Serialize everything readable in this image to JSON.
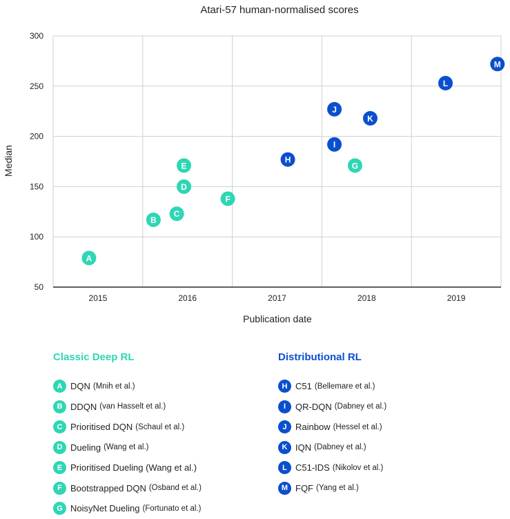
{
  "colors": {
    "classic": "#2ed6b4",
    "distributional": "#0b4fce",
    "grid": "#cfcfcf",
    "axis": "#2a2a2a"
  },
  "chart_data": {
    "type": "scatter",
    "title": "Atari-57 human-normalised scores",
    "xlabel": "Publication date",
    "ylabel": "Median",
    "ylim": [
      50,
      300
    ],
    "yticks": [
      50,
      100,
      150,
      200,
      250,
      300
    ],
    "xlim": [
      2014.5,
      2019.5
    ],
    "xticks": [
      "2015",
      "2016",
      "2017",
      "2018",
      "2019"
    ],
    "series": [
      {
        "name": "Classic Deep RL",
        "color": "#2ed6b4",
        "points": [
          {
            "label": "A",
            "x": 2014.9,
            "y": 79
          },
          {
            "label": "B",
            "x": 2015.62,
            "y": 117
          },
          {
            "label": "C",
            "x": 2015.88,
            "y": 123
          },
          {
            "label": "D",
            "x": 2015.96,
            "y": 150
          },
          {
            "label": "E",
            "x": 2015.96,
            "y": 171
          },
          {
            "label": "F",
            "x": 2016.45,
            "y": 138
          },
          {
            "label": "G",
            "x": 2017.87,
            "y": 171
          }
        ]
      },
      {
        "name": "Distributional RL",
        "color": "#0b4fce",
        "points": [
          {
            "label": "H",
            "x": 2017.12,
            "y": 177
          },
          {
            "label": "I",
            "x": 2017.64,
            "y": 192
          },
          {
            "label": "J",
            "x": 2017.64,
            "y": 227
          },
          {
            "label": "K",
            "x": 2018.04,
            "y": 218
          },
          {
            "label": "L",
            "x": 2018.88,
            "y": 253
          },
          {
            "label": "M",
            "x": 2019.46,
            "y": 272
          }
        ]
      }
    ]
  },
  "legend": {
    "classic": {
      "title": "Classic Deep RL",
      "items": [
        {
          "letter": "A",
          "name": "DQN",
          "cite": "(Mnih et al.)"
        },
        {
          "letter": "B",
          "name": "DDQN",
          "cite": "(van Hasselt et al.)"
        },
        {
          "letter": "C",
          "name": "Prioritised DQN",
          "cite": "(Schaul et al.)"
        },
        {
          "letter": "D",
          "name": "Dueling",
          "cite": "(Wang et al.)"
        },
        {
          "letter": "E",
          "name": "Prioritised Dueling (Wang et al.)",
          "cite": ""
        },
        {
          "letter": "F",
          "name": "Bootstrapped DQN",
          "cite": "(Osband et al.)"
        },
        {
          "letter": "G",
          "name": "NoisyNet Dueling",
          "cite": "(Fortunato et al.)"
        }
      ]
    },
    "distributional": {
      "title": "Distributional RL",
      "items": [
        {
          "letter": "H",
          "name": "C51",
          "cite": "(Bellemare et al.)"
        },
        {
          "letter": "I",
          "name": "QR-DQN",
          "cite": "(Dabney et al.)"
        },
        {
          "letter": "J",
          "name": "Rainbow",
          "cite": "(Hessel et al.)"
        },
        {
          "letter": "K",
          "name": "IQN",
          "cite": "(Dabney et al.)"
        },
        {
          "letter": "L",
          "name": "C51-IDS",
          "cite": "(Nikolov et al.)"
        },
        {
          "letter": "M",
          "name": "FQF",
          "cite": "(Yang et al.)"
        }
      ]
    }
  }
}
